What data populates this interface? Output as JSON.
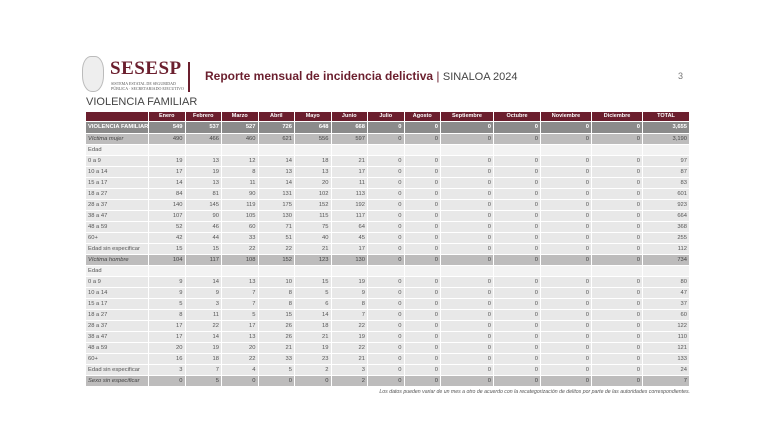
{
  "header": {
    "brand": "SESESP",
    "brand_sub": "SISTEMA ESTATAL DE SEGURIDAD PÚBLICA · SECRETARIADO EJECUTIVO",
    "report_title": "Reporte mensual de incidencia delictiva",
    "separator": "|",
    "state_year": "SINALOA 2024",
    "page_number": "3"
  },
  "section_title": "VIOLENCIA FAMILIAR",
  "columns": [
    "",
    "Enero",
    "Febrero",
    "Marzo",
    "Abril",
    "Mayo",
    "Junio",
    "Julio",
    "Agosto",
    "Septiembre",
    "Octubre",
    "Noviembre",
    "Diciembre",
    "TOTAL"
  ],
  "rows": [
    {
      "type": "tot",
      "label": "VIOLENCIA FAMILIAR  *",
      "values": [
        "549",
        "537",
        "527",
        "726",
        "648",
        "668",
        "0",
        "0",
        "0",
        "0",
        "0",
        "0",
        "3,655"
      ]
    },
    {
      "type": "sub",
      "label": "Víctima mujer",
      "values": [
        "490",
        "466",
        "460",
        "621",
        "556",
        "597",
        "0",
        "0",
        "0",
        "0",
        "0",
        "0",
        "3,190"
      ]
    },
    {
      "type": "hd",
      "label": "Edad",
      "values": [
        "",
        "",
        "",
        "",
        "",
        "",
        "",
        "",
        "",
        "",
        "",
        "",
        ""
      ]
    },
    {
      "type": "rw",
      "label": "0 a 9",
      "values": [
        "19",
        "13",
        "12",
        "14",
        "18",
        "21",
        "0",
        "0",
        "0",
        "0",
        "0",
        "0",
        "97"
      ]
    },
    {
      "type": "rw",
      "label": "10 a 14",
      "values": [
        "17",
        "19",
        "8",
        "13",
        "13",
        "17",
        "0",
        "0",
        "0",
        "0",
        "0",
        "0",
        "87"
      ]
    },
    {
      "type": "rw",
      "label": "15 a 17",
      "values": [
        "14",
        "13",
        "11",
        "14",
        "20",
        "11",
        "0",
        "0",
        "0",
        "0",
        "0",
        "0",
        "83"
      ]
    },
    {
      "type": "rw",
      "label": "18 a 27",
      "values": [
        "84",
        "81",
        "90",
        "131",
        "102",
        "113",
        "0",
        "0",
        "0",
        "0",
        "0",
        "0",
        "601"
      ]
    },
    {
      "type": "rw",
      "label": "28 a 37",
      "values": [
        "140",
        "145",
        "119",
        "175",
        "152",
        "192",
        "0",
        "0",
        "0",
        "0",
        "0",
        "0",
        "923"
      ]
    },
    {
      "type": "rw",
      "label": "38 a 47",
      "values": [
        "107",
        "90",
        "105",
        "130",
        "115",
        "117",
        "0",
        "0",
        "0",
        "0",
        "0",
        "0",
        "664"
      ]
    },
    {
      "type": "rw",
      "label": "48 a 59",
      "values": [
        "52",
        "46",
        "60",
        "71",
        "75",
        "64",
        "0",
        "0",
        "0",
        "0",
        "0",
        "0",
        "368"
      ]
    },
    {
      "type": "rw",
      "label": "60+",
      "values": [
        "42",
        "44",
        "33",
        "51",
        "40",
        "45",
        "0",
        "0",
        "0",
        "0",
        "0",
        "0",
        "255"
      ]
    },
    {
      "type": "rw",
      "label": "Edad sin especificar",
      "values": [
        "15",
        "15",
        "22",
        "22",
        "21",
        "17",
        "0",
        "0",
        "0",
        "0",
        "0",
        "0",
        "112"
      ]
    },
    {
      "type": "sub",
      "label": "Víctima hombre",
      "values": [
        "104",
        "117",
        "108",
        "152",
        "123",
        "130",
        "0",
        "0",
        "0",
        "0",
        "0",
        "0",
        "734"
      ]
    },
    {
      "type": "hd",
      "label": "Edad",
      "values": [
        "",
        "",
        "",
        "",
        "",
        "",
        "",
        "",
        "",
        "",
        "",
        "",
        ""
      ]
    },
    {
      "type": "rw",
      "label": "0 a 9",
      "values": [
        "9",
        "14",
        "13",
        "10",
        "15",
        "19",
        "0",
        "0",
        "0",
        "0",
        "0",
        "0",
        "80"
      ]
    },
    {
      "type": "rw",
      "label": "10 a 14",
      "values": [
        "9",
        "9",
        "7",
        "8",
        "5",
        "9",
        "0",
        "0",
        "0",
        "0",
        "0",
        "0",
        "47"
      ]
    },
    {
      "type": "rw",
      "label": "15 a 17",
      "values": [
        "5",
        "3",
        "7",
        "8",
        "6",
        "8",
        "0",
        "0",
        "0",
        "0",
        "0",
        "0",
        "37"
      ]
    },
    {
      "type": "rw",
      "label": "18 a 27",
      "values": [
        "8",
        "11",
        "5",
        "15",
        "14",
        "7",
        "0",
        "0",
        "0",
        "0",
        "0",
        "0",
        "60"
      ]
    },
    {
      "type": "rw",
      "label": "28 a 37",
      "values": [
        "17",
        "22",
        "17",
        "26",
        "18",
        "22",
        "0",
        "0",
        "0",
        "0",
        "0",
        "0",
        "122"
      ]
    },
    {
      "type": "rw",
      "label": "38 a 47",
      "values": [
        "17",
        "14",
        "13",
        "26",
        "21",
        "19",
        "0",
        "0",
        "0",
        "0",
        "0",
        "0",
        "110"
      ]
    },
    {
      "type": "rw",
      "label": "48 a 59",
      "values": [
        "20",
        "19",
        "20",
        "21",
        "19",
        "22",
        "0",
        "0",
        "0",
        "0",
        "0",
        "0",
        "121"
      ]
    },
    {
      "type": "rw",
      "label": "60+",
      "values": [
        "16",
        "18",
        "22",
        "33",
        "23",
        "21",
        "0",
        "0",
        "0",
        "0",
        "0",
        "0",
        "133"
      ]
    },
    {
      "type": "rw",
      "label": "Edad sin especificar",
      "values": [
        "3",
        "7",
        "4",
        "5",
        "2",
        "3",
        "0",
        "0",
        "0",
        "0",
        "0",
        "0",
        "24"
      ]
    },
    {
      "type": "sub",
      "label": "Sexo sin especificar",
      "values": [
        "0",
        "5",
        "0",
        "0",
        "0",
        "2",
        "0",
        "0",
        "0",
        "0",
        "0",
        "0",
        "7"
      ]
    }
  ],
  "footnote": "Los datos pueden variar de un mes a otro de acuerdo con la recategorización de delitos por parte de las autoridades correspondientes."
}
